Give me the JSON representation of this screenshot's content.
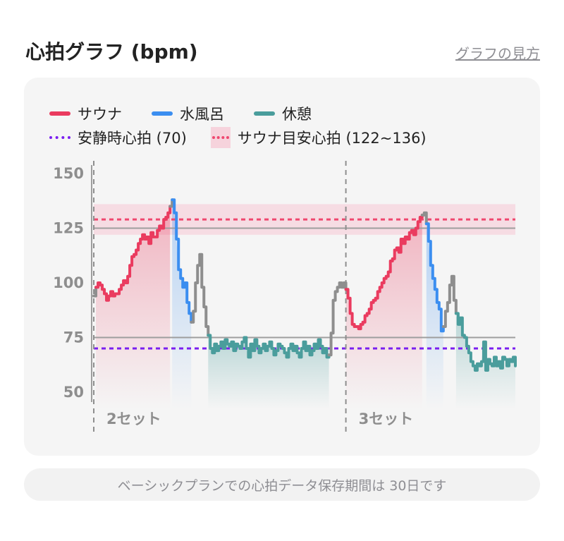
{
  "header": {
    "title": "心拍グラフ (bpm)",
    "help_link": "グラフの見方"
  },
  "legend": {
    "sauna": "サウナ",
    "cold_bath": "水風呂",
    "rest": "休憩",
    "resting_hr": "安静時心拍 (70)",
    "sauna_zone": "サウナ目安心拍 (122~136)"
  },
  "colors": {
    "sauna": "#ea3b5f",
    "cold_bath": "#3b8ef0",
    "rest": "#4a9d9c",
    "transition": "#8e8e8e",
    "resting_hr": "#7a1ff0",
    "sauna_zone_fill": "#f6d3dc",
    "sauna_zone_line": "#ef476f"
  },
  "footer_note": "ベーシックプランでの心拍データ保存期間は 30日です",
  "chart_data": {
    "type": "line",
    "ylim": [
      42,
      155
    ],
    "yticks": [
      50,
      75,
      100,
      125,
      150
    ],
    "reference_lines": [
      {
        "name": "安静時心拍 (70)",
        "value": 70,
        "style": "dotted"
      },
      {
        "name": "gridline",
        "value": 75,
        "style": "solid"
      },
      {
        "name": "gridline",
        "value": 125,
        "style": "solid"
      }
    ],
    "zone": {
      "name": "サウナ目安心拍 (122~136)",
      "from": 122,
      "to": 136,
      "center": 129
    },
    "set_labels": [
      {
        "label": "2セット",
        "at": 0
      },
      {
        "label": "3セット",
        "at": 119
      }
    ],
    "x_max": 199,
    "segments": [
      {
        "type": "transition",
        "x": [
          0,
          1
        ],
        "y": [
          94,
          98
        ]
      },
      {
        "type": "sauna",
        "x": [
          1,
          2,
          3,
          4,
          5,
          6,
          7,
          8,
          9,
          10,
          11,
          12,
          13,
          14,
          15,
          16,
          17,
          18,
          19,
          20,
          21,
          22,
          23,
          24,
          25,
          26,
          27,
          28,
          29,
          30,
          31,
          32,
          33,
          34,
          35,
          36
        ],
        "y": [
          98,
          100,
          99,
          97,
          95,
          92,
          94,
          96,
          94,
          95,
          95,
          97,
          99,
          101,
          100,
          103,
          108,
          112,
          113,
          115,
          118,
          120,
          122,
          120,
          121,
          118,
          123,
          121,
          121,
          124,
          126,
          125,
          129,
          130,
          132,
          135
        ]
      },
      {
        "type": "transition",
        "x": [
          36,
          37
        ],
        "y": [
          135,
          138
        ]
      },
      {
        "type": "cold_bath",
        "x": [
          37,
          38,
          39,
          40,
          41,
          42,
          43,
          44,
          45,
          46
        ],
        "y": [
          138,
          132,
          120,
          106,
          102,
          98,
          100,
          91,
          86,
          82
        ]
      },
      {
        "type": "transition",
        "x": [
          46,
          47,
          48,
          49,
          50,
          51,
          52,
          53,
          54
        ],
        "y": [
          82,
          87,
          100,
          108,
          113,
          98,
          89,
          80,
          76
        ]
      },
      {
        "type": "rest",
        "x": [
          54,
          55,
          56,
          57,
          58,
          59,
          60,
          61,
          62,
          63,
          64,
          65,
          66,
          67,
          68,
          69,
          70,
          71,
          72,
          73,
          74,
          75,
          76,
          77,
          78,
          79,
          80,
          81,
          82,
          83,
          84,
          85,
          86,
          87,
          88,
          89,
          90,
          91,
          92,
          93,
          94,
          95,
          96,
          97,
          98,
          99,
          100,
          101,
          102,
          103,
          104,
          105,
          106,
          107,
          108,
          109,
          110,
          111
        ],
        "y": [
          76,
          70,
          68,
          72,
          69,
          71,
          73,
          70,
          74,
          72,
          71,
          73,
          69,
          72,
          71,
          70,
          73,
          75,
          70,
          66,
          72,
          69,
          74,
          71,
          68,
          70,
          72,
          69,
          71,
          73,
          70,
          67,
          69,
          72,
          71,
          70,
          68,
          66,
          70,
          72,
          69,
          71,
          68,
          66,
          70,
          73,
          69,
          71,
          67,
          69,
          72,
          70,
          74,
          71,
          68,
          70,
          66,
          67
        ]
      },
      {
        "type": "transition",
        "x": [
          111,
          112,
          113,
          114,
          115,
          116,
          117,
          118,
          119
        ],
        "y": [
          67,
          77,
          92,
          96,
          98,
          100,
          98,
          100,
          97
        ]
      },
      {
        "type": "sauna",
        "x": [
          119,
          120,
          121,
          122,
          123,
          124,
          125,
          126,
          127,
          128,
          129,
          130,
          131,
          132,
          133,
          134,
          135,
          136,
          137,
          138,
          139,
          140,
          141,
          142,
          143,
          144,
          145,
          146,
          147,
          148,
          149,
          150,
          151,
          152,
          153,
          154,
          155
        ],
        "y": [
          97,
          93,
          86,
          81,
          80,
          80,
          79,
          81,
          82,
          85,
          86,
          88,
          91,
          92,
          93,
          96,
          98,
          100,
          102,
          103,
          105,
          110,
          111,
          115,
          116,
          114,
          120,
          118,
          121,
          120,
          123,
          124,
          122,
          125,
          128,
          130,
          131
        ]
      },
      {
        "type": "transition",
        "x": [
          155,
          156,
          157
        ],
        "y": [
          131,
          132,
          127
        ]
      },
      {
        "type": "cold_bath",
        "x": [
          157,
          158,
          159,
          160,
          161,
          162,
          163,
          164,
          165
        ],
        "y": [
          127,
          119,
          108,
          102,
          97,
          91,
          88,
          78,
          80
        ]
      },
      {
        "type": "transition",
        "x": [
          165,
          166,
          167,
          168,
          169,
          170,
          171
        ],
        "y": [
          80,
          87,
          91,
          99,
          103,
          92,
          86
        ]
      },
      {
        "type": "rest",
        "x": [
          171,
          172,
          173,
          174,
          175,
          176,
          177,
          178,
          179,
          180,
          181,
          182,
          183,
          184,
          185,
          186,
          187,
          188,
          189,
          190,
          191,
          192,
          193,
          194,
          195,
          196,
          197,
          198,
          199
        ],
        "y": [
          86,
          81,
          84,
          76,
          75,
          71,
          68,
          64,
          62,
          60,
          63,
          62,
          64,
          73,
          60,
          65,
          63,
          62,
          66,
          62,
          64,
          61,
          66,
          65,
          62,
          65,
          64,
          66,
          62
        ]
      }
    ]
  }
}
